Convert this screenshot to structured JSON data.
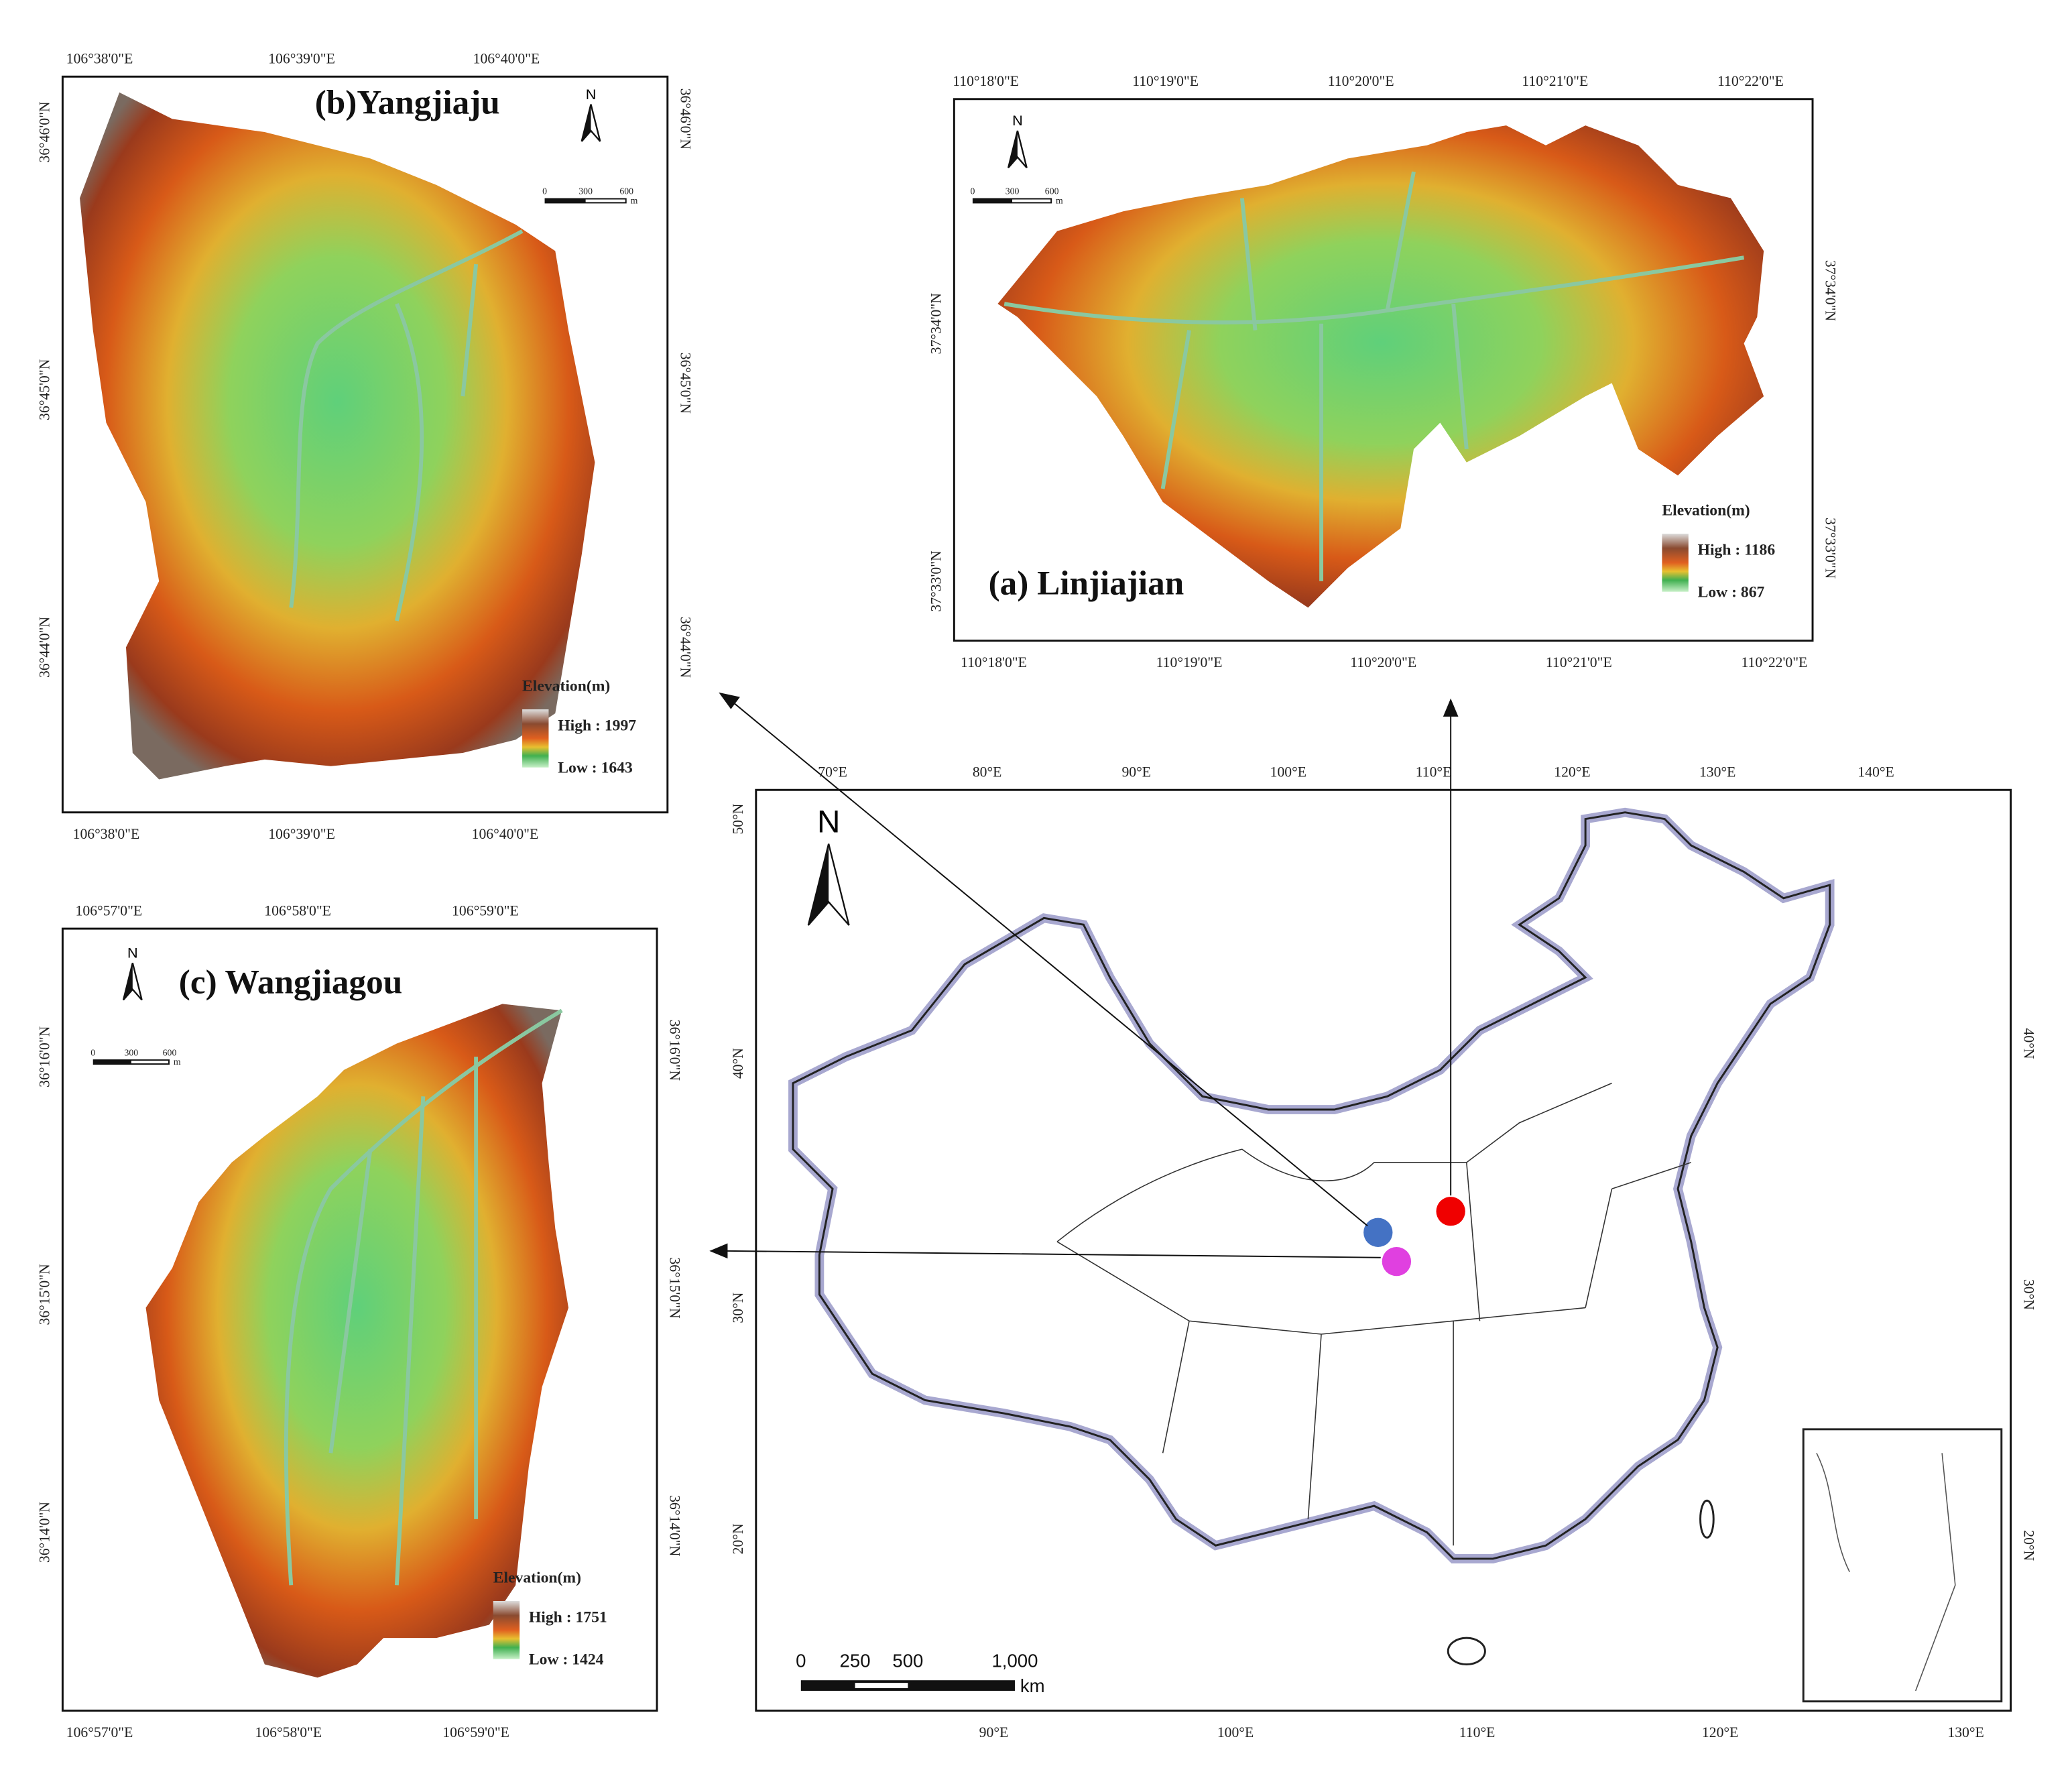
{
  "panels": [
    {
      "title": "(a) Linjiajian",
      "top_ticks": [
        "110°18'0\"E",
        "110°19'0\"E",
        "110°20'0\"E",
        "110°21'0\"E",
        "110°22'0\"E"
      ],
      "bottom_ticks": [
        "110°18'0\"E",
        "110°19'0\"E",
        "110°20'0\"E",
        "110°21'0\"E",
        "110°22'0\"E"
      ],
      "left_ticks": [
        "37°34'0\"N",
        "37°33'0\"N"
      ],
      "right_ticks": [
        "37°34'0\"N",
        "37°33'0\"N"
      ],
      "north": "N",
      "scale": {
        "labels": [
          "0",
          "300",
          "600"
        ],
        "unit": "m"
      },
      "legend": {
        "title": "Elevation(m)",
        "high": "High : 1186",
        "low": "Low : 867"
      }
    },
    {
      "title": "(b)Yangjiaju",
      "top_ticks": [
        "106°38'0\"E",
        "106°39'0\"E",
        "106°40'0\"E"
      ],
      "bottom_ticks": [
        "106°38'0\"E",
        "106°39'0\"E",
        "106°40'0\"E"
      ],
      "left_ticks": [
        "36°46'0\"N",
        "36°45'0\"N",
        "36°44'0\"N"
      ],
      "right_ticks": [
        "36°46'0\"N",
        "36°45'0\"N",
        "36°44'0\"N"
      ],
      "north": "N",
      "scale": {
        "labels": [
          "0",
          "300",
          "600"
        ],
        "unit": "m"
      },
      "legend": {
        "title": "Elevation(m)",
        "high": "High : 1997",
        "low": "Low : 1643"
      }
    },
    {
      "title": "(c) Wangjiagou",
      "top_ticks": [
        "106°57'0\"E",
        "106°58'0\"E",
        "106°59'0\"E"
      ],
      "bottom_ticks": [
        "106°57'0\"E",
        "106°58'0\"E",
        "106°59'0\"E"
      ],
      "left_ticks": [
        "36°16'0\"N",
        "36°15'0\"N",
        "36°14'0\"N"
      ],
      "right_ticks": [
        "36°16'0\"N",
        "36°15'0\"N",
        "36°14'0\"N"
      ],
      "north": "N",
      "scale": {
        "labels": [
          "0",
          "300",
          "600"
        ],
        "unit": "m"
      },
      "legend": {
        "title": "Elevation(m)",
        "high": "High : 1751",
        "low": "Low : 1424"
      }
    }
  ],
  "overview": {
    "top_ticks": [
      "70°E",
      "80°E",
      "90°E",
      "100°E",
      "110°E",
      "120°E",
      "130°E",
      "140°E"
    ],
    "bottom_ticks": [
      "90°E",
      "100°E",
      "110°E",
      "120°E",
      "130°E"
    ],
    "left_ticks": [
      "50°N",
      "40°N",
      "30°N",
      "20°N"
    ],
    "right_ticks": [
      "40°N",
      "30°N",
      "20°N"
    ],
    "north": "N",
    "scale": {
      "labels": [
        "0",
        "250",
        "500",
        "1,000"
      ],
      "unit": "km"
    }
  }
}
